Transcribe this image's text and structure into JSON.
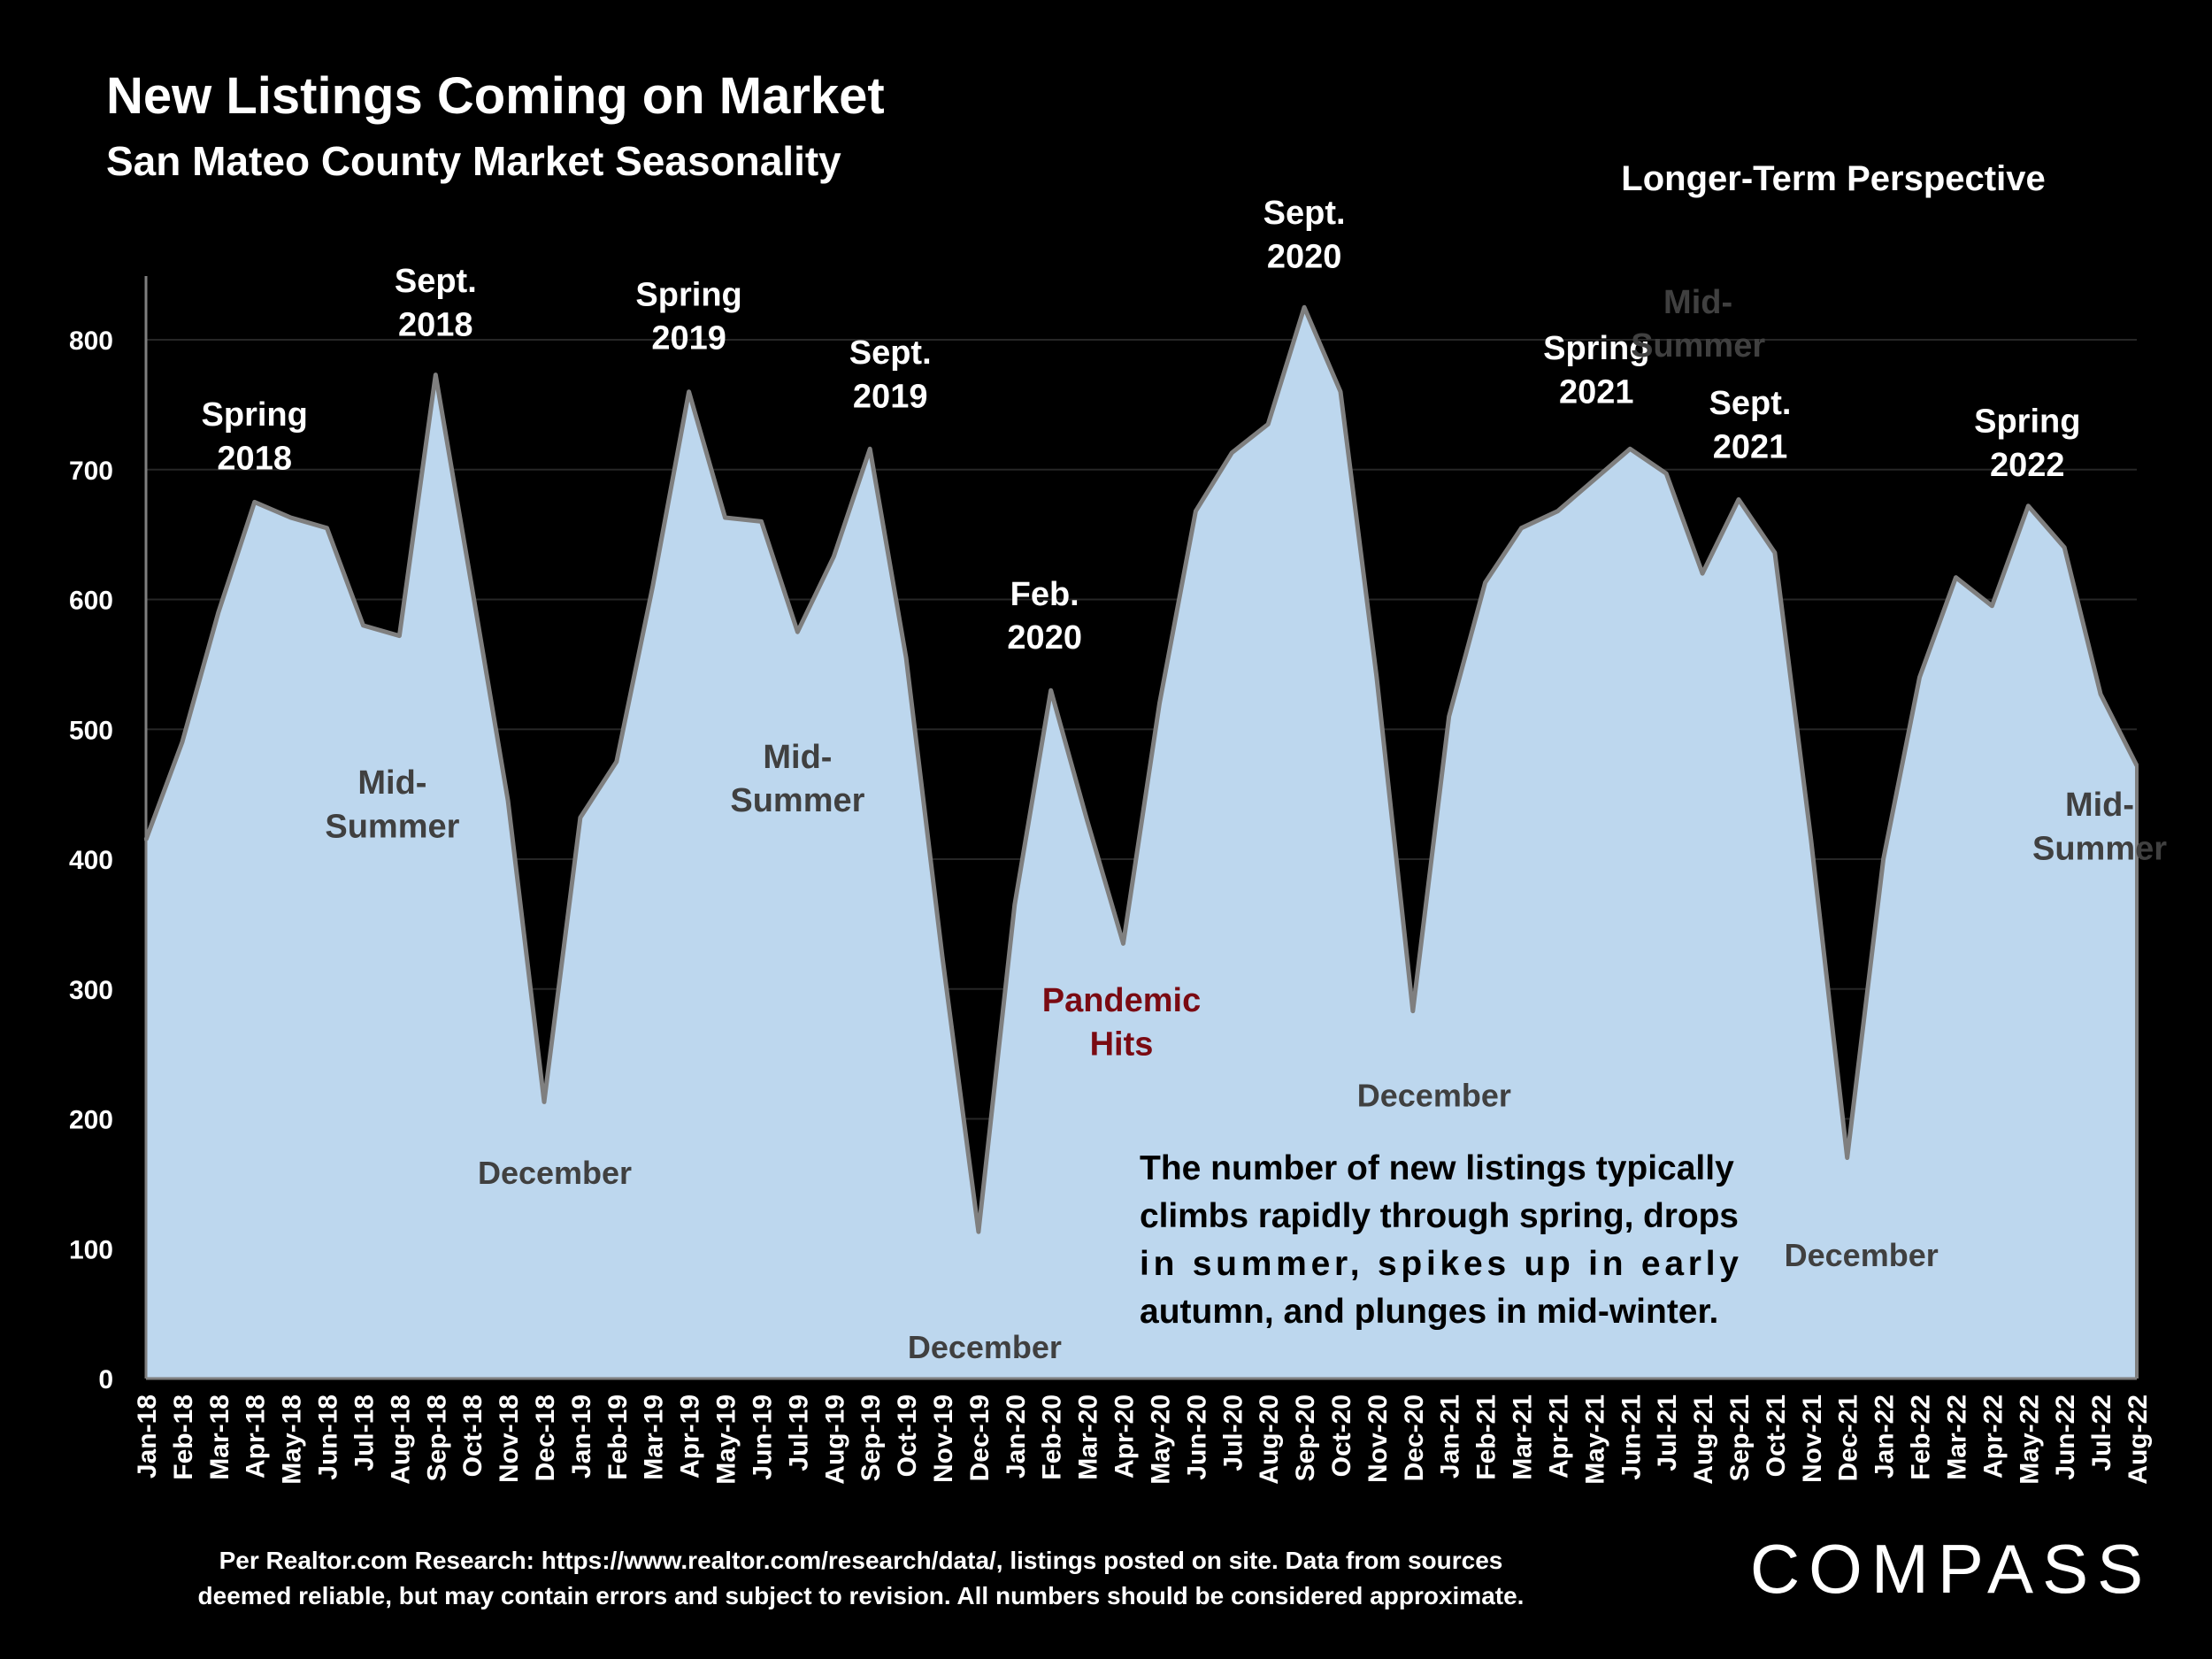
{
  "header": {
    "title": "New Listings Coming on Market",
    "subtitle": "San Mateo County Market Seasonality",
    "perspective": "Longer-Term Perspective"
  },
  "colors": {
    "background": "#000000",
    "area_fill": "#bdd7ee",
    "area_line": "#7f7f7f",
    "annotation_dark": "#404040",
    "annotation_pandemic": "#7a0a12"
  },
  "chart_data": {
    "type": "area",
    "title": "New Listings Coming on Market",
    "subtitle": "San Mateo County Market Seasonality",
    "xlabel": "",
    "ylabel": "",
    "ylim": [
      0,
      850
    ],
    "yticks": [
      0,
      100,
      200,
      300,
      400,
      500,
      600,
      700,
      800
    ],
    "grid": true,
    "categories": [
      "Jan-18",
      "Feb-18",
      "Mar-18",
      "Apr-18",
      "May-18",
      "Jun-18",
      "Jul-18",
      "Aug-18",
      "Sep-18",
      "Oct-18",
      "Nov-18",
      "Dec-18",
      "Jan-19",
      "Feb-19",
      "Mar-19",
      "Apr-19",
      "May-19",
      "Jun-19",
      "Jul-19",
      "Aug-19",
      "Sep-19",
      "Oct-19",
      "Nov-19",
      "Dec-19",
      "Jan-20",
      "Feb-20",
      "Mar-20",
      "Apr-20",
      "May-20",
      "Jun-20",
      "Jul-20",
      "Aug-20",
      "Sep-20",
      "Oct-20",
      "Nov-20",
      "Dec-20",
      "Jan-21",
      "Feb-21",
      "Mar-21",
      "Apr-21",
      "May-21",
      "Jun-21",
      "Jul-21",
      "Aug-21",
      "Sep-21",
      "Oct-21",
      "Nov-21",
      "Dec-21",
      "Jan-22",
      "Feb-22",
      "Mar-22",
      "Apr-22",
      "May-22",
      "Jun-22",
      "Jul-22",
      "Aug-22"
    ],
    "series": [
      {
        "name": "New Listings",
        "values": [
          415,
          490,
          590,
          675,
          663,
          655,
          580,
          572,
          773,
          610,
          445,
          213,
          432,
          475,
          610,
          760,
          663,
          660,
          575,
          633,
          716,
          555,
          325,
          113,
          365,
          530,
          430,
          335,
          520,
          668,
          713,
          735,
          825,
          760,
          540,
          283,
          510,
          613,
          655,
          668,
          692,
          716,
          697,
          620,
          677,
          636,
          415,
          170,
          400,
          540,
          617,
          595,
          672,
          640,
          527,
          472
        ]
      }
    ],
    "annotations": [
      {
        "category": "Apr-18",
        "lines": [
          "Spring",
          "2018"
        ],
        "style": "white"
      },
      {
        "category": "Aug-18",
        "lines": [
          "Mid-",
          "Summer"
        ],
        "style": "dark"
      },
      {
        "category": "Sep-18",
        "lines": [
          "Sept.",
          "2018"
        ],
        "style": "white"
      },
      {
        "category": "Dec-18",
        "lines": [
          "December"
        ],
        "style": "dark"
      },
      {
        "category": "Apr-19",
        "lines": [
          "Spring",
          "2019"
        ],
        "style": "white"
      },
      {
        "category": "Jul-19",
        "lines": [
          "Mid-",
          "Summer"
        ],
        "style": "dark"
      },
      {
        "category": "Sep-19",
        "lines": [
          "Sept.",
          "2019"
        ],
        "style": "white"
      },
      {
        "category": "Dec-19",
        "lines": [
          "December"
        ],
        "style": "dark"
      },
      {
        "category": "Feb-20",
        "lines": [
          "Feb.",
          "2020"
        ],
        "style": "white"
      },
      {
        "category": "Apr-20",
        "lines": [
          "Pandemic",
          "Hits"
        ],
        "style": "pandemic"
      },
      {
        "category": "Sep-20",
        "lines": [
          "Sept.",
          "2020"
        ],
        "style": "white"
      },
      {
        "category": "Dec-20",
        "lines": [
          "December"
        ],
        "style": "dark"
      },
      {
        "category": "Jun-21",
        "lines": [
          "Spring",
          "2021"
        ],
        "style": "white"
      },
      {
        "category": "Sep-21",
        "lines": [
          "Sept.",
          "2021"
        ],
        "style": "white"
      },
      {
        "category": "Aug-21",
        "lines": [
          "Mid-",
          "Summer"
        ],
        "style": "dark"
      },
      {
        "category": "Dec-21",
        "lines": [
          "December"
        ],
        "style": "dark"
      },
      {
        "category": "May-22",
        "lines": [
          "Spring",
          "2022"
        ],
        "style": "white"
      },
      {
        "category": "Aug-22",
        "lines": [
          "Mid-",
          "Summer"
        ],
        "style": "dark"
      }
    ]
  },
  "note": {
    "lines": [
      "The number of new listings typically",
      "climbs rapidly through spring, drops",
      "in summer, spikes up in early",
      "autumn, and plunges in mid-winter."
    ]
  },
  "footer": {
    "source_line1": "Per Realtor.com Research:  https://www.realtor.com/research/data/, listings posted on site. Data from sources",
    "source_line2": "deemed reliable, but may contain errors and subject to revision. All numbers should be considered approximate.",
    "logo": "COMPASS"
  }
}
